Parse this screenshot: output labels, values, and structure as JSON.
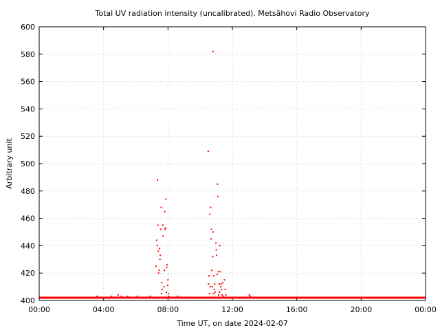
{
  "chart_data": {
    "type": "scatter",
    "title": "Total UV radiation intensity (uncalibrated). Metsähovi Radio Observatory",
    "xlabel": "Time UT, on date 2024-02-07",
    "ylabel": "Arbitrary unit",
    "xlim": [
      0,
      24
    ],
    "ylim": [
      400,
      600
    ],
    "x_ticks": [
      {
        "value": 0,
        "label": "00:00"
      },
      {
        "value": 4,
        "label": "04:00"
      },
      {
        "value": 8,
        "label": "08:00"
      },
      {
        "value": 12,
        "label": "12:00"
      },
      {
        "value": 16,
        "label": "16:00"
      },
      {
        "value": 20,
        "label": "20:00"
      },
      {
        "value": 24,
        "label": "00:00"
      }
    ],
    "y_ticks": [
      {
        "value": 400,
        "label": "400"
      },
      {
        "value": 420,
        "label": "420"
      },
      {
        "value": 440,
        "label": "440"
      },
      {
        "value": 460,
        "label": "460"
      },
      {
        "value": 480,
        "label": "480"
      },
      {
        "value": 500,
        "label": "500"
      },
      {
        "value": 520,
        "label": "520"
      },
      {
        "value": 540,
        "label": "540"
      },
      {
        "value": 560,
        "label": "560"
      },
      {
        "value": 580,
        "label": "580"
      },
      {
        "value": 600,
        "label": "600"
      }
    ],
    "grid": true,
    "series": [
      {
        "color": "#ff0000",
        "baseline": {
          "x_range": [
            0,
            24
          ],
          "y": 402
        },
        "x": [
          2.6,
          3.0,
          3.3,
          3.6,
          3.9,
          4.2,
          4.5,
          4.7,
          4.9,
          5.1,
          5.3,
          5.5,
          5.7,
          5.9,
          6.1,
          6.3,
          6.6,
          6.9,
          7.25,
          7.3,
          7.33,
          7.35,
          7.38,
          7.4,
          7.42,
          7.45,
          7.48,
          7.5,
          7.52,
          7.55,
          7.58,
          7.6,
          7.62,
          7.65,
          7.68,
          7.7,
          7.72,
          7.75,
          7.78,
          7.8,
          7.82,
          7.85,
          7.88,
          7.9,
          7.92,
          7.95,
          7.98,
          8.0,
          8.03,
          8.06,
          8.2,
          8.4,
          8.6,
          8.9,
          9.2,
          9.5,
          9.8,
          10.1,
          10.3,
          10.5,
          10.52,
          10.55,
          10.58,
          10.6,
          10.62,
          10.65,
          10.68,
          10.7,
          10.72,
          10.75,
          10.78,
          10.8,
          10.82,
          10.85,
          10.88,
          10.9,
          10.92,
          10.95,
          10.98,
          11.0,
          11.02,
          11.05,
          11.08,
          11.1,
          11.12,
          11.15,
          11.18,
          11.2,
          11.22,
          11.25,
          11.28,
          11.3,
          11.33,
          11.36,
          11.4,
          11.45,
          11.5,
          11.55,
          11.6,
          13.05,
          13.1
        ],
        "y": [
          402,
          402,
          402,
          403,
          402,
          402,
          403,
          402,
          404,
          403,
          402,
          403,
          402,
          402,
          403,
          402,
          402,
          403,
          425,
          444,
          440,
          488,
          455,
          436,
          420,
          422,
          438,
          430,
          433,
          452,
          468,
          405,
          413,
          408,
          455,
          447,
          402,
          410,
          422,
          465,
          452,
          453,
          474,
          406,
          424,
          426,
          411,
          415,
          405,
          403,
          402,
          402,
          403,
          402,
          402,
          402,
          402,
          402,
          402,
          509,
          412,
          418,
          405,
          463,
          410,
          468,
          445,
          452,
          422,
          410,
          432,
          450,
          405,
          418,
          408,
          412,
          406,
          402,
          442,
          437,
          433,
          419,
          485,
          476,
          421,
          404,
          412,
          406,
          440,
          421,
          410,
          412,
          408,
          404,
          413,
          403,
          415,
          408,
          404,
          404,
          403
        ]
      },
      {
        "color": "#ff0000",
        "x": [
          10.8
        ],
        "y": [
          582
        ]
      }
    ]
  }
}
